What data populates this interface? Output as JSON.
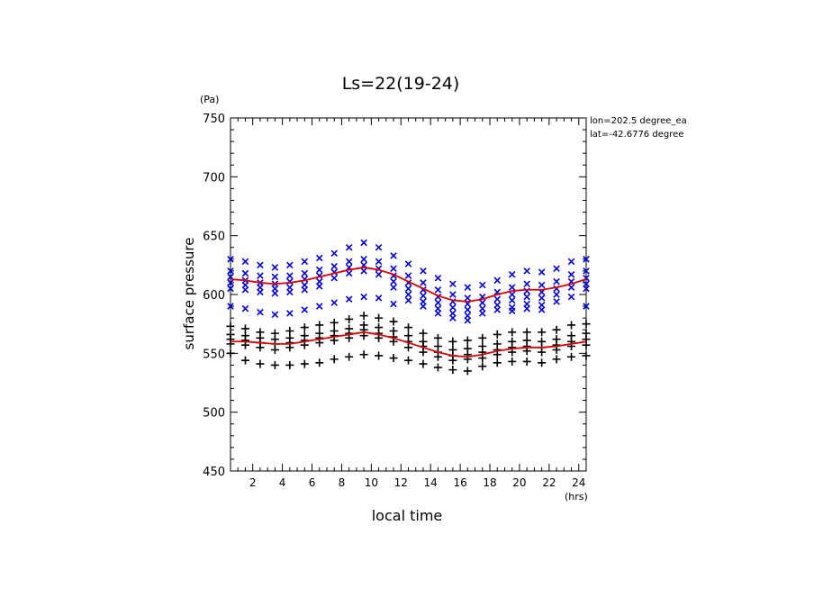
{
  "chart_data": {
    "type": "scatter",
    "title": "Ls=22(19-24)",
    "xlabel": "local time",
    "ylabel": "surface pressure",
    "xunit": "(hrs)",
    "yunit": "(Pa)",
    "xlim": [
      0.5,
      24.5
    ],
    "ylim": [
      450,
      750
    ],
    "xticks": [
      2,
      4,
      6,
      8,
      10,
      12,
      14,
      16,
      18,
      20,
      22,
      24
    ],
    "yticks": [
      450,
      500,
      550,
      600,
      650,
      700,
      750
    ],
    "annotations": [
      "lon=202.5 degree_ea",
      "lat=-42.6776 degree"
    ],
    "colors": {
      "blue_series": "#0000dd",
      "black_series": "#000000",
      "fit_line": "#dd0000"
    },
    "series": [
      {
        "marker": "x",
        "color": "#0000dd",
        "points": [
          [
            0.5,
            630
          ],
          [
            0.5,
            620
          ],
          [
            0.5,
            615
          ],
          [
            0.5,
            610
          ],
          [
            0.5,
            605
          ],
          [
            0.5,
            590
          ],
          [
            1.5,
            628
          ],
          [
            1.5,
            618
          ],
          [
            1.5,
            612
          ],
          [
            1.5,
            608
          ],
          [
            1.5,
            604
          ],
          [
            1.5,
            588
          ],
          [
            2.5,
            625
          ],
          [
            2.5,
            616
          ],
          [
            2.5,
            610
          ],
          [
            2.5,
            606
          ],
          [
            2.5,
            602
          ],
          [
            2.5,
            585
          ],
          [
            3.5,
            623
          ],
          [
            3.5,
            615
          ],
          [
            3.5,
            609
          ],
          [
            3.5,
            605
          ],
          [
            3.5,
            601
          ],
          [
            3.5,
            583
          ],
          [
            4.5,
            625
          ],
          [
            4.5,
            616
          ],
          [
            4.5,
            611
          ],
          [
            4.5,
            606
          ],
          [
            4.5,
            602
          ],
          [
            4.5,
            584
          ],
          [
            5.5,
            628
          ],
          [
            5.5,
            618
          ],
          [
            5.5,
            613
          ],
          [
            5.5,
            608
          ],
          [
            5.5,
            604
          ],
          [
            5.5,
            587
          ],
          [
            6.5,
            631
          ],
          [
            6.5,
            621
          ],
          [
            6.5,
            616
          ],
          [
            6.5,
            611
          ],
          [
            6.5,
            607
          ],
          [
            6.5,
            590
          ],
          [
            7.5,
            635
          ],
          [
            7.5,
            624
          ],
          [
            7.5,
            619
          ],
          [
            7.5,
            614
          ],
          [
            7.5,
            593
          ],
          [
            8.5,
            640
          ],
          [
            8.5,
            628
          ],
          [
            8.5,
            623
          ],
          [
            8.5,
            618
          ],
          [
            8.5,
            596
          ],
          [
            9.5,
            644
          ],
          [
            9.5,
            630
          ],
          [
            9.5,
            625
          ],
          [
            9.5,
            620
          ],
          [
            9.5,
            598
          ],
          [
            10.5,
            640
          ],
          [
            10.5,
            628
          ],
          [
            10.5,
            622
          ],
          [
            10.5,
            617
          ],
          [
            10.5,
            597
          ],
          [
            11.5,
            633
          ],
          [
            11.5,
            622
          ],
          [
            11.5,
            616
          ],
          [
            11.5,
            611
          ],
          [
            11.5,
            606
          ],
          [
            11.5,
            592
          ],
          [
            12.5,
            626
          ],
          [
            12.5,
            616
          ],
          [
            12.5,
            610
          ],
          [
            12.5,
            605
          ],
          [
            12.5,
            600
          ],
          [
            12.5,
            595
          ],
          [
            13.5,
            620
          ],
          [
            13.5,
            610
          ],
          [
            13.5,
            604
          ],
          [
            13.5,
            599
          ],
          [
            13.5,
            594
          ],
          [
            13.5,
            590
          ],
          [
            14.5,
            614
          ],
          [
            14.5,
            604
          ],
          [
            14.5,
            598
          ],
          [
            14.5,
            593
          ],
          [
            14.5,
            588
          ],
          [
            14.5,
            584
          ],
          [
            15.5,
            609
          ],
          [
            15.5,
            600
          ],
          [
            15.5,
            594
          ],
          [
            15.5,
            589
          ],
          [
            15.5,
            584
          ],
          [
            15.5,
            580
          ],
          [
            16.5,
            606
          ],
          [
            16.5,
            597
          ],
          [
            16.5,
            592
          ],
          [
            16.5,
            587
          ],
          [
            16.5,
            582
          ],
          [
            16.5,
            578
          ],
          [
            17.5,
            608
          ],
          [
            17.5,
            598
          ],
          [
            17.5,
            593
          ],
          [
            17.5,
            588
          ],
          [
            17.5,
            584
          ],
          [
            18.5,
            612
          ],
          [
            18.5,
            602
          ],
          [
            18.5,
            596
          ],
          [
            18.5,
            591
          ],
          [
            18.5,
            587
          ],
          [
            19.5,
            617
          ],
          [
            19.5,
            606
          ],
          [
            19.5,
            600
          ],
          [
            19.5,
            595
          ],
          [
            19.5,
            589
          ],
          [
            19.5,
            586
          ],
          [
            20.5,
            620
          ],
          [
            20.5,
            609
          ],
          [
            20.5,
            603
          ],
          [
            20.5,
            598
          ],
          [
            20.5,
            592
          ],
          [
            20.5,
            588
          ],
          [
            21.5,
            619
          ],
          [
            21.5,
            608
          ],
          [
            21.5,
            602
          ],
          [
            21.5,
            597
          ],
          [
            21.5,
            591
          ],
          [
            21.5,
            587
          ],
          [
            22.5,
            622
          ],
          [
            22.5,
            611
          ],
          [
            22.5,
            605
          ],
          [
            22.5,
            600
          ],
          [
            22.5,
            594
          ],
          [
            23.5,
            628
          ],
          [
            23.5,
            617
          ],
          [
            23.5,
            611
          ],
          [
            23.5,
            606
          ],
          [
            23.5,
            598
          ],
          [
            24.5,
            630
          ],
          [
            24.5,
            620
          ],
          [
            24.5,
            614
          ],
          [
            24.5,
            609
          ],
          [
            24.5,
            605
          ],
          [
            24.5,
            590
          ]
        ]
      },
      {
        "marker": "+",
        "color": "#000000",
        "points": [
          [
            0.5,
            573
          ],
          [
            0.5,
            566
          ],
          [
            0.5,
            562
          ],
          [
            0.5,
            558
          ],
          [
            0.5,
            550
          ],
          [
            1.5,
            571
          ],
          [
            1.5,
            565
          ],
          [
            1.5,
            561
          ],
          [
            1.5,
            557
          ],
          [
            1.5,
            544
          ],
          [
            2.5,
            568
          ],
          [
            2.5,
            563
          ],
          [
            2.5,
            559
          ],
          [
            2.5,
            555
          ],
          [
            2.5,
            541
          ],
          [
            3.5,
            567
          ],
          [
            3.5,
            562
          ],
          [
            3.5,
            558
          ],
          [
            3.5,
            553
          ],
          [
            3.5,
            540
          ],
          [
            4.5,
            569
          ],
          [
            4.5,
            563
          ],
          [
            4.5,
            559
          ],
          [
            4.5,
            555
          ],
          [
            4.5,
            540
          ],
          [
            5.5,
            572
          ],
          [
            5.5,
            565
          ],
          [
            5.5,
            561
          ],
          [
            5.5,
            557
          ],
          [
            5.5,
            541
          ],
          [
            6.5,
            574
          ],
          [
            6.5,
            567
          ],
          [
            6.5,
            563
          ],
          [
            6.5,
            559
          ],
          [
            6.5,
            542
          ],
          [
            7.5,
            576
          ],
          [
            7.5,
            569
          ],
          [
            7.5,
            565
          ],
          [
            7.5,
            561
          ],
          [
            7.5,
            545
          ],
          [
            8.5,
            579
          ],
          [
            8.5,
            571
          ],
          [
            8.5,
            567
          ],
          [
            8.5,
            563
          ],
          [
            8.5,
            547
          ],
          [
            9.5,
            582
          ],
          [
            9.5,
            574
          ],
          [
            9.5,
            570
          ],
          [
            9.5,
            565
          ],
          [
            9.5,
            549
          ],
          [
            10.5,
            580
          ],
          [
            10.5,
            572
          ],
          [
            10.5,
            567
          ],
          [
            10.5,
            563
          ],
          [
            10.5,
            548
          ],
          [
            11.5,
            577
          ],
          [
            11.5,
            569
          ],
          [
            11.5,
            564
          ],
          [
            11.5,
            560
          ],
          [
            11.5,
            546
          ],
          [
            12.5,
            572
          ],
          [
            12.5,
            565
          ],
          [
            12.5,
            560
          ],
          [
            12.5,
            555
          ],
          [
            12.5,
            544
          ],
          [
            13.5,
            567
          ],
          [
            13.5,
            560
          ],
          [
            13.5,
            556
          ],
          [
            13.5,
            551
          ],
          [
            13.5,
            541
          ],
          [
            14.5,
            563
          ],
          [
            14.5,
            556
          ],
          [
            14.5,
            551
          ],
          [
            14.5,
            547
          ],
          [
            14.5,
            538
          ],
          [
            15.5,
            560
          ],
          [
            15.5,
            553
          ],
          [
            15.5,
            548
          ],
          [
            15.5,
            544
          ],
          [
            15.5,
            536
          ],
          [
            16.5,
            561
          ],
          [
            16.5,
            554
          ],
          [
            16.5,
            549
          ],
          [
            16.5,
            545
          ],
          [
            16.5,
            535
          ],
          [
            17.5,
            563
          ],
          [
            17.5,
            556
          ],
          [
            17.5,
            551
          ],
          [
            17.5,
            546
          ],
          [
            17.5,
            539
          ],
          [
            18.5,
            566
          ],
          [
            18.5,
            558
          ],
          [
            18.5,
            553
          ],
          [
            18.5,
            549
          ],
          [
            18.5,
            542
          ],
          [
            19.5,
            568
          ],
          [
            19.5,
            560
          ],
          [
            19.5,
            555
          ],
          [
            19.5,
            551
          ],
          [
            19.5,
            543
          ],
          [
            20.5,
            568
          ],
          [
            20.5,
            561
          ],
          [
            20.5,
            556
          ],
          [
            20.5,
            552
          ],
          [
            20.5,
            543
          ],
          [
            21.5,
            568
          ],
          [
            21.5,
            560
          ],
          [
            21.5,
            555
          ],
          [
            21.5,
            551
          ],
          [
            21.5,
            542
          ],
          [
            22.5,
            570
          ],
          [
            22.5,
            562
          ],
          [
            22.5,
            557
          ],
          [
            22.5,
            553
          ],
          [
            22.5,
            545
          ],
          [
            23.5,
            574
          ],
          [
            23.5,
            565
          ],
          [
            23.5,
            560
          ],
          [
            23.5,
            556
          ],
          [
            23.5,
            547
          ],
          [
            24.5,
            575
          ],
          [
            24.5,
            567
          ],
          [
            24.5,
            562
          ],
          [
            24.5,
            557
          ],
          [
            24.5,
            548
          ]
        ]
      }
    ],
    "fit_lines": [
      {
        "color": "#dd0000",
        "x": [
          0.5,
          1.5,
          2.5,
          3.5,
          4.5,
          5.5,
          6.5,
          7.5,
          8.5,
          9.5,
          10.5,
          11.5,
          12.5,
          13.5,
          14.5,
          15.5,
          16.5,
          17.5,
          18.5,
          19.5,
          20.5,
          21.5,
          22.5,
          23.5,
          24.5
        ],
        "y": [
          613,
          612,
          610,
          609,
          610,
          612,
          615,
          618,
          621,
          623,
          621,
          617,
          611,
          605,
          599,
          595,
          594,
          596,
          600,
          603,
          604,
          604,
          606,
          609,
          613
        ]
      },
      {
        "color": "#dd0000",
        "x": [
          0.5,
          1.5,
          2.5,
          3.5,
          4.5,
          5.5,
          6.5,
          7.5,
          8.5,
          9.5,
          10.5,
          11.5,
          12.5,
          13.5,
          14.5,
          15.5,
          16.5,
          17.5,
          18.5,
          19.5,
          20.5,
          21.5,
          22.5,
          23.5,
          24.5
        ],
        "y": [
          560,
          560,
          559,
          558,
          558,
          560,
          562,
          564,
          566,
          568,
          566,
          563,
          559,
          555,
          551,
          548,
          547,
          549,
          552,
          554,
          555,
          555,
          556,
          558,
          560
        ]
      }
    ]
  }
}
